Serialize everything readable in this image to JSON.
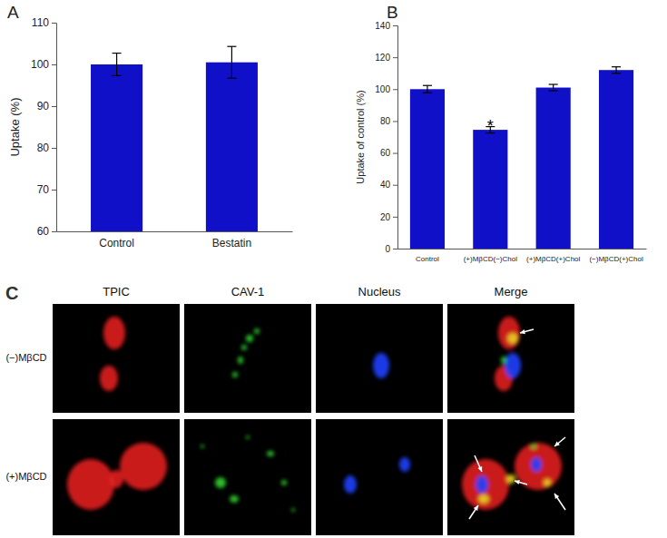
{
  "chart_data": [
    {
      "type": "bar",
      "title": "A",
      "y_label": "Uptake  (%)",
      "categories": [
        "Control",
        "Bestatin"
      ],
      "values": [
        100,
        100.5
      ],
      "errors": [
        2.7,
        3.8
      ],
      "color": "#1010c8",
      "ylim": [
        60,
        110
      ],
      "yticks": [
        60,
        70,
        80,
        90,
        100,
        110
      ],
      "grid": false
    },
    {
      "type": "bar",
      "title": "B",
      "y_label": "Uptake of control (%)",
      "categories": [
        "Control",
        "(+)MβCD(−)Chol",
        "(+)MβCD(+)Chol",
        "(−)MβCD(+)Chol"
      ],
      "values": [
        100,
        74.5,
        101,
        112
      ],
      "errors": [
        2.3,
        2,
        2,
        2
      ],
      "color": "#1010c8",
      "ylim": [
        0,
        140
      ],
      "yticks": [
        0,
        20,
        40,
        60,
        80,
        100,
        120,
        140
      ],
      "grid": false,
      "annotations": [
        {
          "text": "*",
          "category": "(+)MβCD(−)Chol"
        }
      ]
    }
  ],
  "panel_c": {
    "label": "C",
    "columns": [
      "TPIC",
      "CAV-1",
      "Nucleus",
      "Merge"
    ],
    "rows": [
      "(−)MβCD",
      "(+)MβCD"
    ]
  }
}
